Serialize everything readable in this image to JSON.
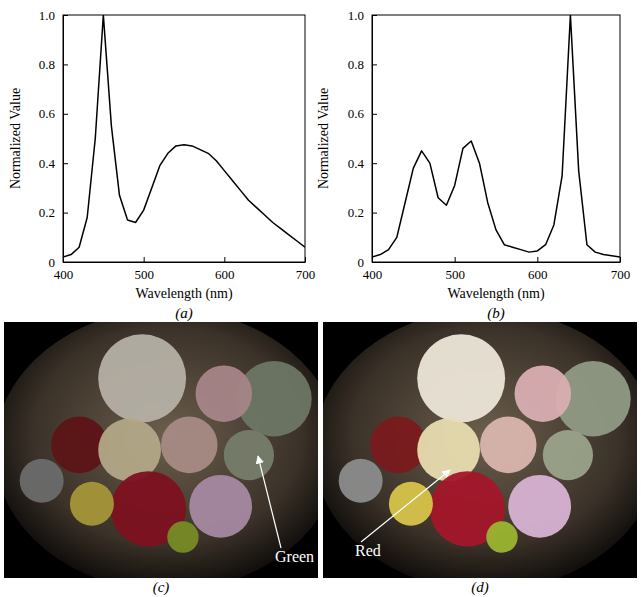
{
  "chart_data": [
    {
      "type": "line",
      "title": "(a)",
      "x_label": "Wavelength (nm)",
      "y_label": "Normalized Value",
      "x": [
        400,
        410,
        420,
        430,
        440,
        450,
        460,
        470,
        480,
        490,
        500,
        510,
        520,
        530,
        540,
        550,
        560,
        570,
        580,
        590,
        600,
        610,
        620,
        630,
        640,
        650,
        660,
        670,
        680,
        690,
        700
      ],
      "series": [
        {
          "color": "#000000",
          "values": [
            0.02,
            0.03,
            0.06,
            0.18,
            0.5,
            1.0,
            0.55,
            0.27,
            0.17,
            0.16,
            0.21,
            0.3,
            0.39,
            0.44,
            0.47,
            0.475,
            0.47,
            0.455,
            0.44,
            0.41,
            0.37,
            0.33,
            0.29,
            0.25,
            0.22,
            0.19,
            0.16,
            0.135,
            0.11,
            0.085,
            0.06
          ]
        }
      ],
      "xlim": [
        400,
        700
      ],
      "xticks": [
        400,
        500,
        600,
        700
      ],
      "ylim": [
        0,
        1
      ],
      "yticks": [
        0,
        0.2,
        0.4,
        0.6,
        0.8,
        {
          "value": 1,
          "label": "1.0"
        }
      ],
      "grid": false
    },
    {
      "type": "line",
      "title": "(b)",
      "x_label": "Wavelength (nm)",
      "y_label": "Normalized Value",
      "x": [
        400,
        410,
        420,
        430,
        440,
        450,
        460,
        470,
        480,
        490,
        500,
        510,
        520,
        530,
        540,
        550,
        560,
        570,
        580,
        590,
        600,
        610,
        620,
        630,
        640,
        650,
        660,
        670,
        680,
        690,
        700
      ],
      "series": [
        {
          "color": "#000000",
          "values": [
            0.02,
            0.03,
            0.05,
            0.1,
            0.24,
            0.38,
            0.45,
            0.4,
            0.26,
            0.23,
            0.31,
            0.46,
            0.49,
            0.4,
            0.24,
            0.13,
            0.07,
            0.06,
            0.05,
            0.04,
            0.045,
            0.07,
            0.15,
            0.35,
            1.0,
            0.37,
            0.07,
            0.04,
            0.03,
            0.025,
            0.02
          ]
        }
      ],
      "xlim": [
        400,
        700
      ],
      "xticks": [
        400,
        500,
        600,
        700
      ],
      "ylim": [
        0,
        1
      ],
      "yticks": [
        0,
        0.2,
        0.4,
        0.6,
        0.8,
        {
          "value": 1,
          "label": "1.0"
        }
      ],
      "grid": false
    }
  ],
  "photos": [
    {
      "caption": "(c)",
      "annotation": "Green"
    },
    {
      "caption": "(d)",
      "annotation": "Red"
    }
  ]
}
